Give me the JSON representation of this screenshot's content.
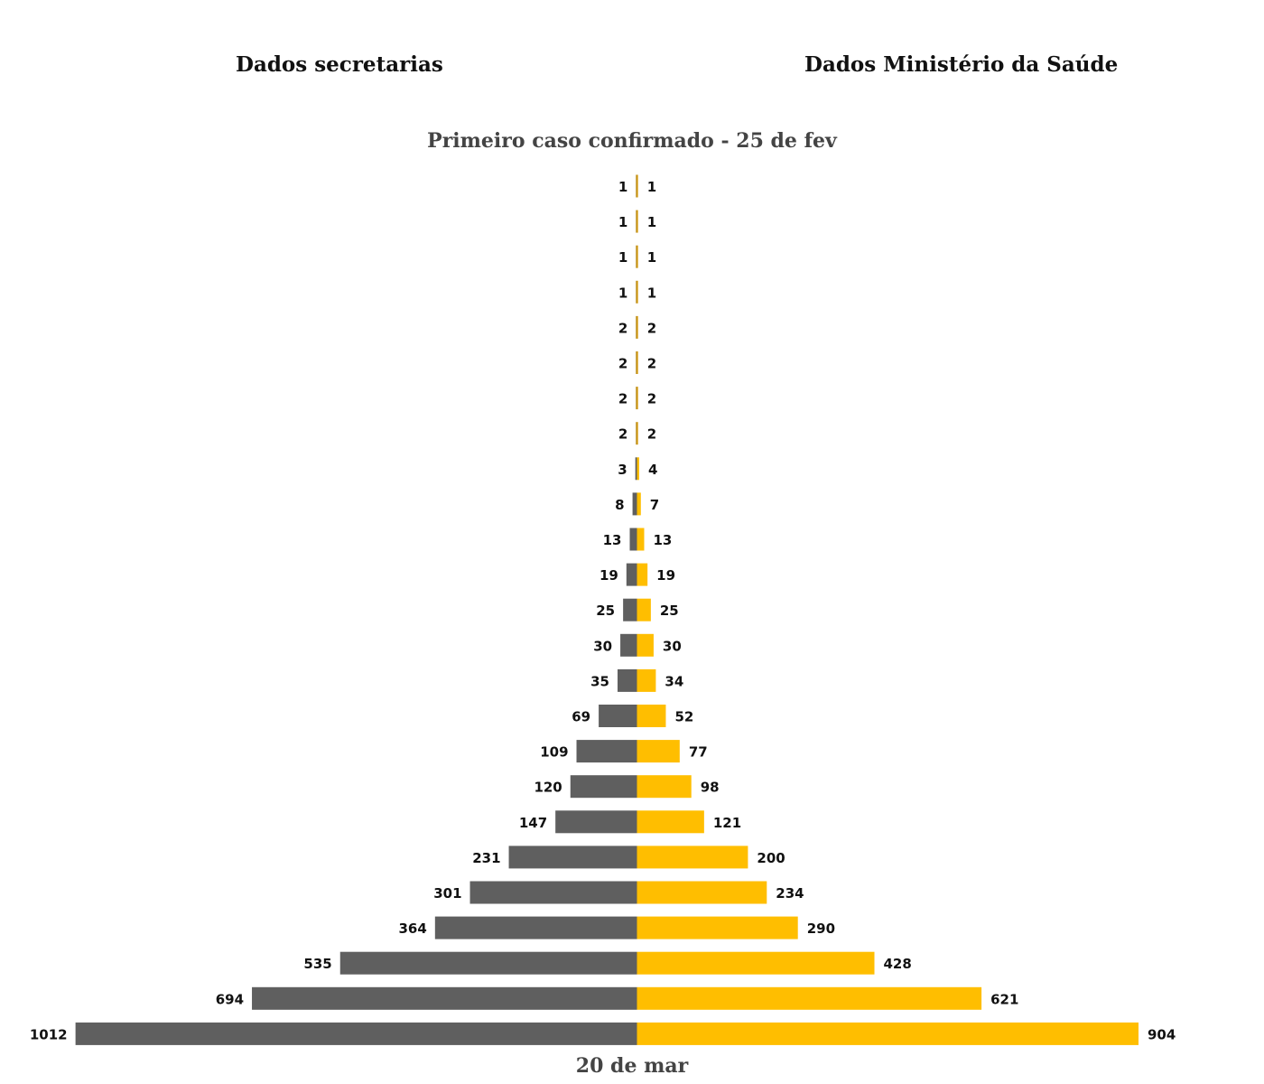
{
  "chart_data": {
    "type": "bar",
    "orientation": "horizontal-diverging",
    "series": [
      {
        "name": "Dados secretarias",
        "color": "#5f5f5f",
        "side": "left",
        "values": [
          1,
          1,
          1,
          1,
          2,
          2,
          2,
          2,
          3,
          8,
          13,
          19,
          25,
          30,
          35,
          69,
          109,
          120,
          147,
          231,
          301,
          364,
          535,
          694,
          1012
        ]
      },
      {
        "name": "Dados Ministério da Saúde",
        "color": "#ffbe00",
        "side": "right",
        "values": [
          1,
          1,
          1,
          1,
          2,
          2,
          2,
          2,
          4,
          7,
          13,
          19,
          25,
          30,
          34,
          52,
          77,
          98,
          121,
          200,
          234,
          290,
          428,
          621,
          904
        ]
      }
    ],
    "first_label": "Primeiro caso confirmado - 25 de fev",
    "last_label": "20 de mar",
    "grid": false,
    "legend": "none"
  }
}
